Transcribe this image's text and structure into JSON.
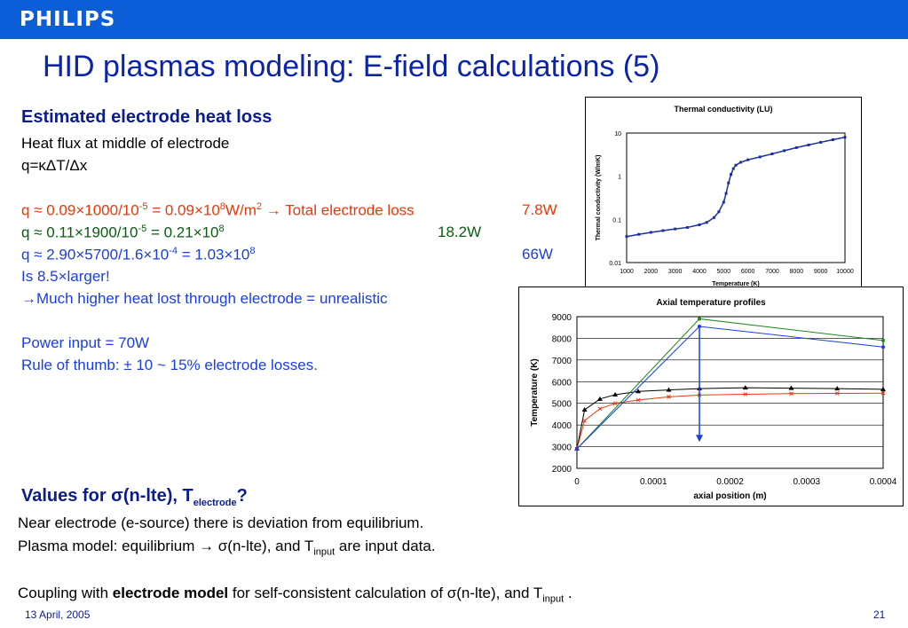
{
  "header": {
    "logo": "PHILIPS",
    "brand_color": "#0b5ed7"
  },
  "title": "HID plasmas modeling: E-field calculations (5)",
  "left": {
    "heading": "Estimated electrode heat loss",
    "l1": "Heat flux at middle of electrode",
    "l2": "q=κΔT/Δx",
    "q1": {
      "pre": "q ≈ 0.09×1000/10",
      "exp1": "-5",
      "mid": " = 0.09×10",
      "exp2": "8",
      "unit": "W/m",
      "exp3": "2",
      "tail": " → Total electrode loss",
      "value": "7.8W"
    },
    "q2": {
      "pre": "q ≈ 0.11×1900/10",
      "exp1": "-5",
      "mid": " = 0.21×10",
      "exp2": "8",
      "value": "18.2W"
    },
    "q3": {
      "pre": "q ≈ 2.90×5700/1.6×10",
      "exp1": "-4",
      "mid": " = 1.03×10",
      "exp2": "8",
      "value": "66W"
    },
    "l3": "Is 8.5×larger!",
    "l4": "→Much higher heat lost through electrode = unrealistic",
    "l5": "Power input = 70W",
    "l6": "Rule of thumb: ± 10 ~ 15% electrode losses."
  },
  "bottom": {
    "heading_pre": "Values for σ(n-lte), T",
    "heading_sub": "electrode",
    "heading_post": "?",
    "b1": "Near electrode (e-source) there is deviation from equilibrium.",
    "b2_pre": "Plasma model: equilibrium → σ(n-lte), and T",
    "b2_sub": "input",
    "b2_post": " are input data.",
    "b3_pre": "Coupling with ",
    "b3_bold": "electrode model",
    "b3_mid": " for self-consistent calculation of σ(n-lte), and T",
    "b3_sub": "input",
    "b3_post": " ."
  },
  "footer": {
    "date": "13 April, 2005",
    "page": "21"
  },
  "chart_data": [
    {
      "type": "scatter",
      "title": "Thermal conductivity (LU)",
      "xlabel": "Temperature (K)",
      "ylabel": "Thermal conductivity (W/mK)",
      "y_scale": "log",
      "xlim": [
        1000,
        10000
      ],
      "ylim": [
        0.01,
        10
      ],
      "x_ticks": [
        "1000",
        "2000",
        "3000",
        "4000",
        "5000",
        "6000",
        "7000",
        "8000",
        "9000",
        "10000"
      ],
      "y_ticks": [
        "10",
        "1",
        "0.1",
        "0.01"
      ],
      "series": [
        {
          "color": "#1a2fa0",
          "x": [
            1000,
            1500,
            2000,
            2500,
            3000,
            3500,
            4000,
            4300,
            4600,
            4800,
            5000,
            5100,
            5200,
            5300,
            5400,
            5500,
            5700,
            6000,
            6500,
            7000,
            7500,
            8000,
            8500,
            9000,
            9500,
            10000
          ],
          "y": [
            0.04,
            0.045,
            0.05,
            0.055,
            0.06,
            0.065,
            0.075,
            0.085,
            0.11,
            0.15,
            0.25,
            0.4,
            0.7,
            1.1,
            1.5,
            1.8,
            2.1,
            2.4,
            2.8,
            3.3,
            3.9,
            4.6,
            5.3,
            6.1,
            7.0,
            8.0
          ]
        }
      ]
    },
    {
      "type": "line",
      "title": "Axial temperature profiles",
      "xlabel": "axial position (m)",
      "ylabel": "Temperature (K)",
      "xlim": [
        0,
        0.0004
      ],
      "ylim": [
        2000,
        9000
      ],
      "x_ticks": [
        "0",
        "0.0001",
        "0.0002",
        "0.0003",
        "0.0004"
      ],
      "y_ticks": [
        "9000",
        "8000",
        "7000",
        "6000",
        "5000",
        "4000",
        "3000",
        "2000"
      ],
      "grid": true,
      "series": [
        {
          "color": "#000000",
          "marker": "triangle",
          "x": [
            0,
            1e-05,
            3e-05,
            5e-05,
            8e-05,
            0.00012,
            0.00016,
            0.00022,
            0.00028,
            0.00034,
            0.0004
          ],
          "y": [
            2900,
            4700,
            5200,
            5400,
            5550,
            5620,
            5680,
            5720,
            5700,
            5680,
            5650
          ]
        },
        {
          "color": "#e8380b",
          "marker": "x",
          "x": [
            0,
            1e-05,
            3e-05,
            5e-05,
            8e-05,
            0.00012,
            0.00016,
            0.00022,
            0.00028,
            0.00034,
            0.0004
          ],
          "y": [
            2900,
            4200,
            4750,
            5000,
            5150,
            5300,
            5380,
            5420,
            5450,
            5460,
            5470
          ]
        },
        {
          "color": "#1a8a1a",
          "marker": "none",
          "x": [
            0,
            0.00016,
            0.0004
          ],
          "y": [
            2900,
            8900,
            7900
          ]
        },
        {
          "color": "#1a3ee0",
          "marker": "none",
          "x": [
            0,
            0.00016,
            0.0004
          ],
          "y": [
            2900,
            8550,
            7600
          ]
        }
      ],
      "arrow": {
        "x": 0.00016,
        "from": 8550,
        "to": 3300,
        "color": "#1a3ee0"
      }
    }
  ]
}
